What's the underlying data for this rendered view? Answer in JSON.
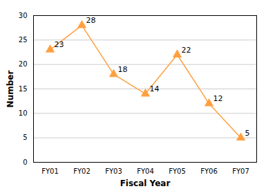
{
  "chart_data": {
    "type": "line",
    "categories": [
      "FY01",
      "FY02",
      "FY03",
      "FY04",
      "FY05",
      "FY06",
      "FY07"
    ],
    "values": [
      23,
      28,
      18,
      14,
      22,
      12,
      5
    ],
    "color": "#FFA040",
    "marker": "triangle",
    "line_style": "solid",
    "xlabel": "Fiscal Year",
    "ylabel": "Number",
    "ylim": [
      0,
      30
    ],
    "yticks": [
      0,
      5,
      10,
      15,
      20,
      25,
      30
    ],
    "grid": true,
    "data_labels": true
  }
}
